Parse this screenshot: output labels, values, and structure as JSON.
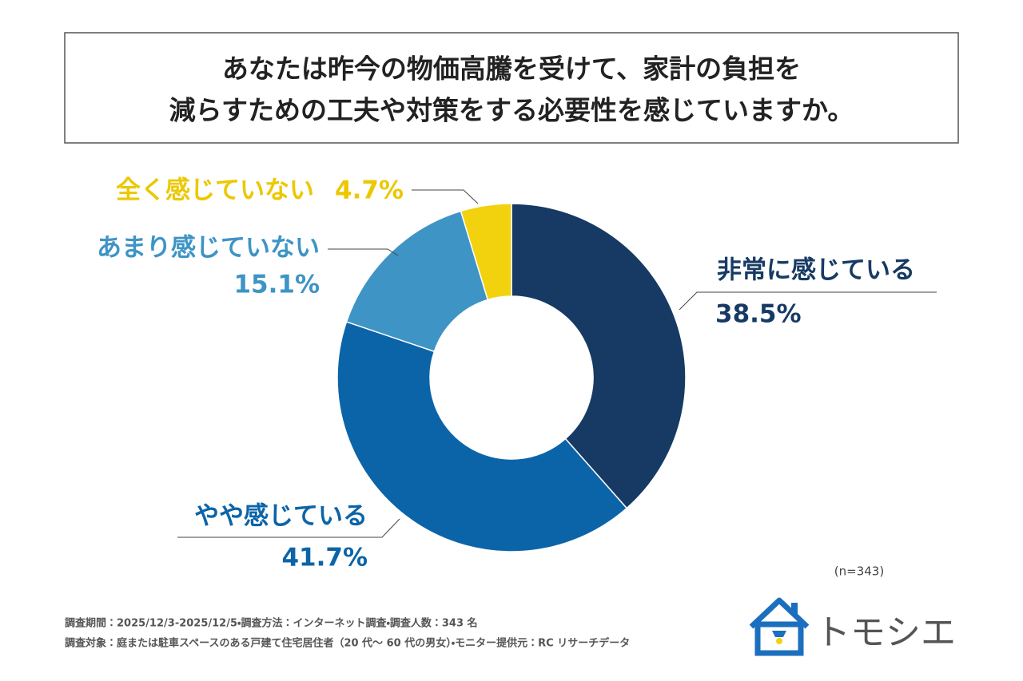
{
  "chart_data": {
    "type": "donut",
    "title": [
      "あなたは昨今の物価高騰を受けて、家計の負担を",
      "減らすための工夫や対策をする必要性を感じていますか。"
    ],
    "categories": [
      "非常に感じている",
      "やや感じている",
      "あまり感じていない",
      "全く感じていない"
    ],
    "values": [
      38.5,
      41.7,
      15.1,
      4.7
    ],
    "value_labels": [
      "38.5%",
      "41.7%",
      "15.1%",
      "4.7%"
    ],
    "colors": [
      "#173a64",
      "#0c64a8",
      "#3e94c5",
      "#f2d20f"
    ],
    "label_colors": [
      "#173a64",
      "#0c64a8",
      "#3e94c5",
      "#ecc800"
    ],
    "note": "(n=343)"
  },
  "footer": [
    "調査期間：2025/12/3-2025/12/5・調査方法：インターネット調査・調査人数：343 名",
    "調査対象：庭または駐車スペースのある戸建て住宅居住者（20 代～ 60 代の男女）・モニター提供元：RC リサーチデータ"
  ],
  "logo": "トモシエ"
}
